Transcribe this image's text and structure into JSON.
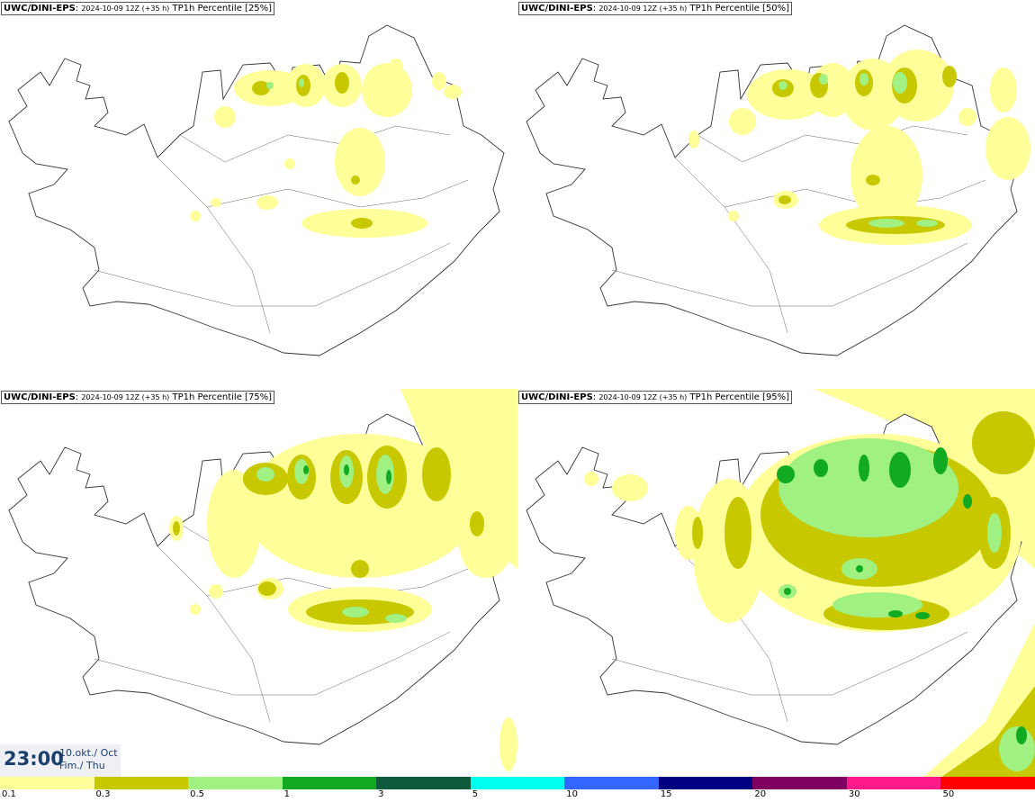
{
  "panels": [
    {
      "source": "UWC/DINI-EPS",
      "run": "2024-10-09 12Z (+35 h)",
      "product": "TP1h Percentile",
      "percentile": "[25%]"
    },
    {
      "source": "UWC/DINI-EPS",
      "run": "2024-10-09 12Z (+35 h)",
      "product": "TP1h Percentile",
      "percentile": "[50%]"
    },
    {
      "source": "UWC/DINI-EPS",
      "run": "2024-10-09 12Z (+35 h)",
      "product": "TP1h Percentile",
      "percentile": "[75%]"
    },
    {
      "source": "UWC/DINI-EPS",
      "run": "2024-10-09 12Z (+35 h)",
      "product": "TP1h Percentile",
      "percentile": "[95%]"
    }
  ],
  "time": {
    "hour": "23:00",
    "date": "10.okt./ Oct",
    "weekday": "Fim./ Thu"
  },
  "legend": {
    "colors": [
      "#ffff99",
      "#c8c800",
      "#a0f082",
      "#11aa22",
      "#0f5a3c",
      "#00ffee",
      "#3366ff",
      "#000080",
      "#800060",
      "#ff1a8c",
      "#ff0000"
    ],
    "ticks": [
      "0.1",
      "0.3",
      "0.5",
      "1",
      "3",
      "5",
      "10",
      "15",
      "20",
      "30",
      "50"
    ]
  }
}
